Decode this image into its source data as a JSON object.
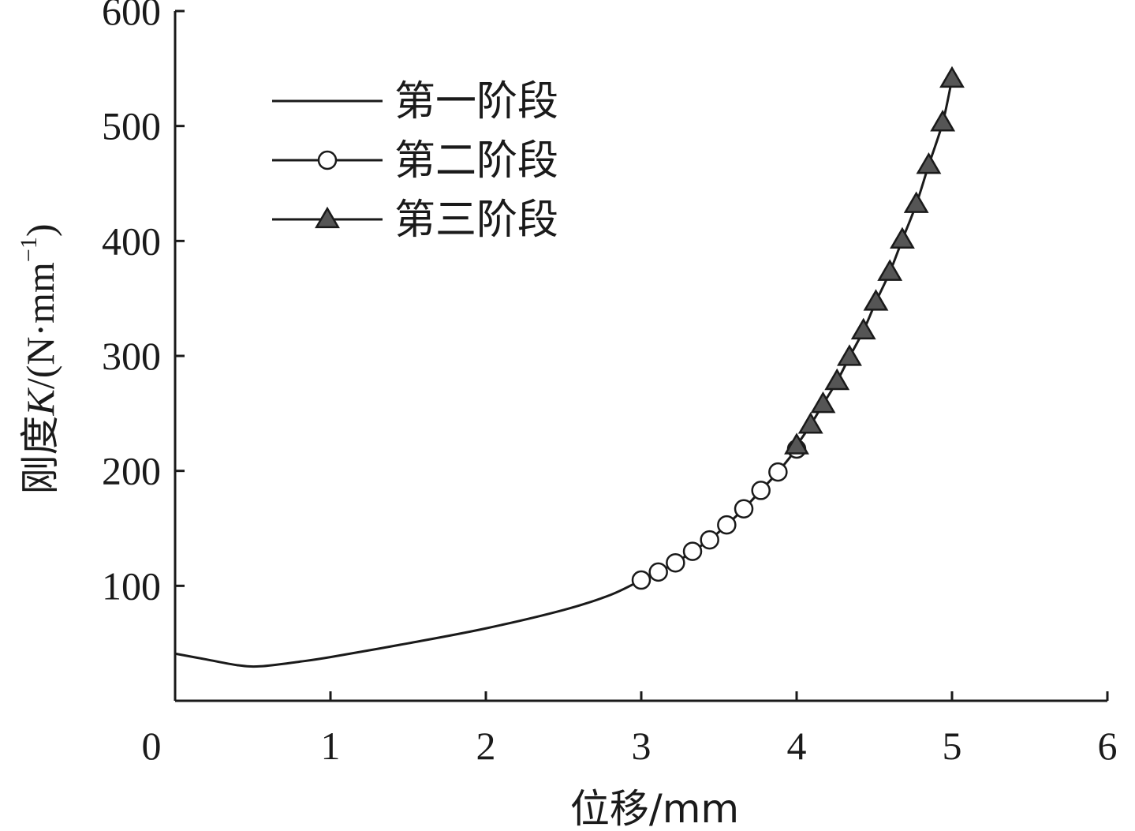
{
  "chart_data": {
    "type": "line",
    "xlabel": "位移/mm",
    "ylabel_prefix": "刚度",
    "ylabel_var": "K",
    "ylabel_unit_open": "/(N·mm",
    "ylabel_unit_sup": "−1",
    "ylabel_unit_close": ")",
    "xlim": [
      0,
      6
    ],
    "ylim": [
      0,
      600
    ],
    "x_ticks": [
      0,
      1,
      2,
      3,
      4,
      5,
      6
    ],
    "y_ticks": [
      100,
      200,
      300,
      400,
      500,
      600
    ],
    "x_tick_labels": [
      "0",
      "1",
      "2",
      "3",
      "4",
      "5",
      "6"
    ],
    "y_tick_labels": [
      "100",
      "200",
      "300",
      "400",
      "500",
      "600"
    ],
    "grid": false,
    "legend_position": "top-left",
    "series": [
      {
        "name": "第一阶段",
        "marker": "none",
        "x": [
          0,
          0.2,
          0.4,
          0.55,
          0.8,
          1.0,
          1.5,
          2.0,
          2.5,
          2.8,
          3.0
        ],
        "y": [
          41,
          36,
          31,
          30,
          34,
          38,
          50,
          63,
          79,
          92,
          105
        ]
      },
      {
        "name": "第二阶段",
        "marker": "circle",
        "x": [
          3.0,
          3.11,
          3.22,
          3.33,
          3.44,
          3.55,
          3.66,
          3.77,
          3.88,
          4.0
        ],
        "y": [
          105,
          112,
          120,
          130,
          140,
          153,
          167,
          183,
          199,
          219
        ]
      },
      {
        "name": "第三阶段",
        "marker": "triangle",
        "x": [
          4.0,
          4.09,
          4.17,
          4.26,
          4.34,
          4.43,
          4.51,
          4.6,
          4.68,
          4.77,
          4.85,
          4.94,
          5.0
        ],
        "y": [
          222,
          240,
          258,
          278,
          299,
          322,
          347,
          373,
          401,
          432,
          466,
          503,
          541
        ]
      }
    ]
  }
}
